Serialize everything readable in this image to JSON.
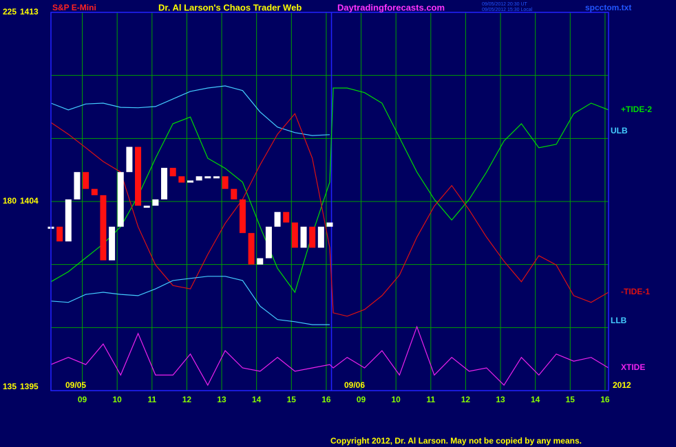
{
  "chart_data": {
    "type": "line",
    "title": "Dr. Al Larson's Chaos Trader Web",
    "site": "Daytradingforecasts.com",
    "timestamps": [
      "09/05/2012 20:30 UT",
      "09/05/2012 15:30 Local"
    ],
    "file": "spcctom.txt",
    "copyright": "Copyright 2012, Dr. Al Larson. May not be copied by any means.",
    "date_labels": [
      "09/05",
      "09/06",
      "2012"
    ],
    "xlim": [
      0,
      16
    ],
    "xticks": [
      {
        "value": 0.9,
        "label": "09"
      },
      {
        "value": 1.9,
        "label": "10"
      },
      {
        "value": 2.9,
        "label": "11"
      },
      {
        "value": 3.9,
        "label": "12"
      },
      {
        "value": 4.9,
        "label": "13"
      },
      {
        "value": 5.9,
        "label": "14"
      },
      {
        "value": 6.9,
        "label": "15"
      },
      {
        "value": 7.9,
        "label": "16"
      },
      {
        "value": 8.9,
        "label": "09"
      },
      {
        "value": 9.9,
        "label": "10"
      },
      {
        "value": 10.9,
        "label": "11"
      },
      {
        "value": 11.9,
        "label": "12"
      },
      {
        "value": 12.9,
        "label": "13"
      },
      {
        "value": 13.9,
        "label": "14"
      },
      {
        "value": 14.9,
        "label": "15"
      },
      {
        "value": 15.9,
        "label": "16"
      }
    ],
    "session_break": 8.05,
    "ylim": [
      135,
      225
    ],
    "yticks": [
      135,
      180,
      225
    ],
    "y2lim": [
      1395,
      1413
    ],
    "y2ticks": [
      1395,
      1404,
      1413
    ],
    "grid_y": [
      150,
      165,
      180,
      195,
      210
    ],
    "grid": true,
    "x": [
      0,
      0.5,
      1,
      1.5,
      2,
      2.5,
      3,
      3.5,
      4,
      4.5,
      5,
      5.5,
      6,
      6.5,
      7,
      7.5,
      8,
      8.1,
      8.5,
      9,
      9.5,
      10,
      10.5,
      11,
      11.5,
      12,
      12.5,
      13,
      13.5,
      14,
      14.5,
      15,
      15.5,
      16
    ],
    "series": [
      {
        "name": "+TIDE-2",
        "color": "#00dd00",
        "values": [
          160.9,
          163.3,
          166.6,
          169.9,
          174.0,
          181.3,
          190.3,
          198.5,
          200.1,
          190.3,
          187.9,
          184.6,
          174.0,
          164.1,
          158.4,
          172.3,
          184.6,
          207.0,
          207.0,
          205.9,
          203.4,
          195.2,
          187.0,
          180.5,
          175.6,
          180.5,
          187.0,
          194.4,
          198.5,
          192.8,
          193.6,
          200.9,
          203.4,
          201.8
        ]
      },
      {
        "name": "ULB",
        "color": "#44ccff",
        "values": [
          203.4,
          201.8,
          203.2,
          203.4,
          202.4,
          202.3,
          202.6,
          204.4,
          206.2,
          207.0,
          207.5,
          206.4,
          201.3,
          197.7,
          196.4,
          195.7,
          195.9,
          null,
          null,
          null,
          null,
          null,
          null,
          null,
          null,
          null,
          null,
          null,
          null,
          null,
          null,
          null,
          null,
          null
        ]
      },
      {
        "name": "-TIDE-1",
        "color": "#dd1111",
        "values": [
          198.8,
          196.0,
          192.8,
          189.5,
          187.0,
          174.0,
          164.9,
          160.0,
          159.2,
          167.4,
          174.8,
          180.5,
          188.7,
          196.0,
          200.9,
          190.3,
          169.0,
          153.5,
          152.7,
          154.3,
          157.6,
          162.5,
          171.5,
          178.9,
          183.8,
          178.0,
          171.5,
          165.8,
          160.9,
          167.1,
          164.9,
          157.6,
          156.0,
          158.4
        ]
      },
      {
        "name": "LLB",
        "color": "#44ccff",
        "values": [
          156.3,
          156.0,
          157.9,
          158.4,
          157.9,
          157.6,
          159.2,
          161.2,
          161.7,
          162.2,
          162.2,
          161.2,
          155.1,
          151.9,
          151.4,
          150.7,
          150.7,
          null,
          null,
          null,
          null,
          null,
          null,
          null,
          null,
          null,
          null,
          null,
          null,
          null,
          null,
          null,
          null,
          null
        ]
      },
      {
        "name": "XTIDE",
        "color": "#ee22ee",
        "values": [
          141.2,
          142.9,
          141.2,
          146.1,
          138.7,
          148.6,
          138.7,
          138.7,
          143.7,
          136.3,
          144.5,
          140.4,
          139.6,
          142.9,
          139.6,
          140.4,
          141.2,
          140.4,
          142.9,
          140.4,
          144.5,
          138.7,
          150.2,
          138.7,
          142.9,
          139.6,
          140.4,
          136.3,
          142.9,
          138.7,
          143.7,
          142.0,
          142.9,
          140.4
        ]
      }
    ],
    "price": {
      "name": "S&P E-Mini",
      "axis": "y2",
      "up_color": "#ffffff",
      "down_color": "#ff1111",
      "x": [
        0,
        0.25,
        0.5,
        0.75,
        1,
        1.25,
        1.5,
        1.75,
        2,
        2.25,
        2.5,
        2.75,
        3,
        3.25,
        3.5,
        3.75,
        4,
        4.25,
        4.5,
        4.75,
        5,
        5.25,
        5.5,
        5.75,
        6,
        6.25,
        6.5,
        6.75,
        7,
        7.25,
        7.5,
        7.75,
        8
      ],
      "values": [
        1402.8,
        1402.1,
        1404.1,
        1405.4,
        1404.6,
        1404.3,
        1401.2,
        1402.8,
        1405.4,
        1406.6,
        1403.8,
        1403.8,
        1404.1,
        1405.6,
        1405.2,
        1404.9,
        1405.0,
        1405.2,
        1405.2,
        1405.2,
        1404.6,
        1404.1,
        1402.5,
        1401.0,
        1401.3,
        1402.8,
        1403.5,
        1403.0,
        1401.8,
        1402.8,
        1401.8,
        1402.8,
        1403.0
      ]
    }
  }
}
